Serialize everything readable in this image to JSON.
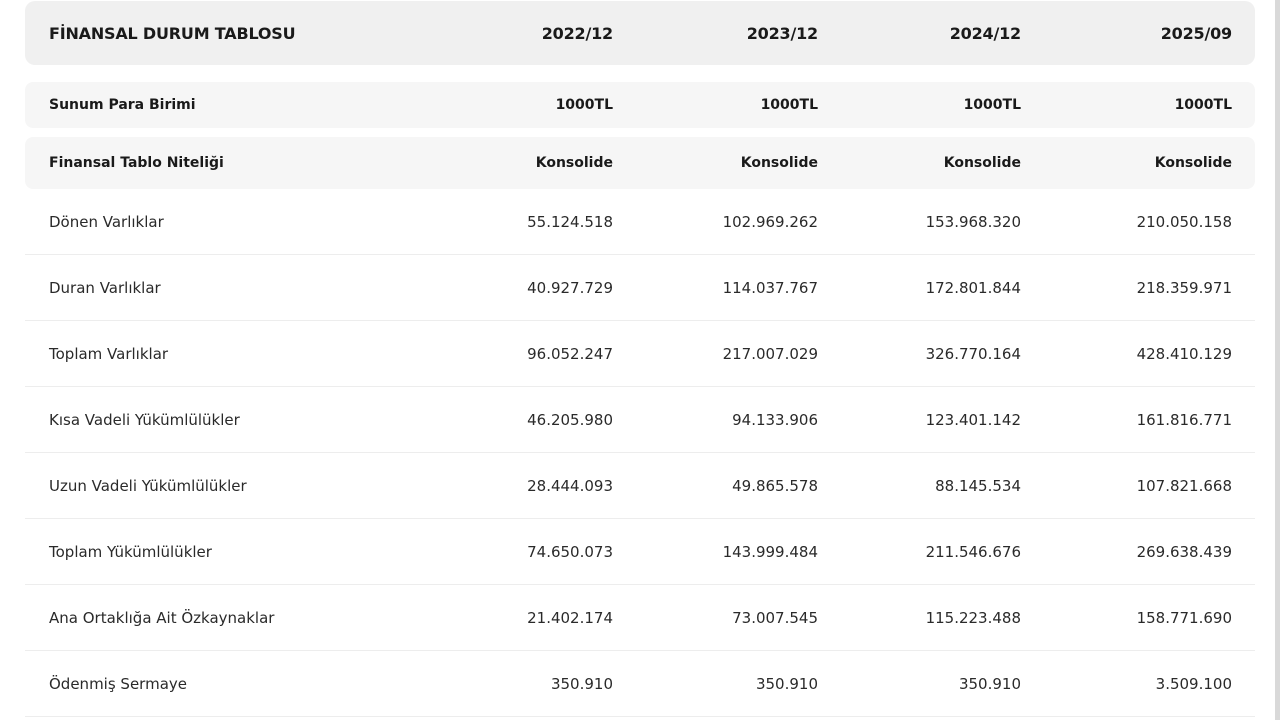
{
  "table": {
    "title": "FİNANSAL DURUM TABLOSU",
    "periods": [
      "2022/12",
      "2023/12",
      "2024/12",
      "2025/09"
    ],
    "meta_rows": [
      {
        "label": "Sunum Para Birimi",
        "values": [
          "1000TL",
          "1000TL",
          "1000TL",
          "1000TL"
        ]
      },
      {
        "label": "Finansal Tablo Niteliği",
        "values": [
          "Konsolide",
          "Konsolide",
          "Konsolide",
          "Konsolide"
        ]
      }
    ],
    "rows": [
      {
        "label": "Dönen Varlıklar",
        "values": [
          "55.124.518",
          "102.969.262",
          "153.968.320",
          "210.050.158"
        ]
      },
      {
        "label": "Duran Varlıklar",
        "values": [
          "40.927.729",
          "114.037.767",
          "172.801.844",
          "218.359.971"
        ]
      },
      {
        "label": "Toplam Varlıklar",
        "values": [
          "96.052.247",
          "217.007.029",
          "326.770.164",
          "428.410.129"
        ]
      },
      {
        "label": "Kısa Vadeli Yükümlülükler",
        "values": [
          "46.205.980",
          "94.133.906",
          "123.401.142",
          "161.816.771"
        ]
      },
      {
        "label": "Uzun Vadeli Yükümlülükler",
        "values": [
          "28.444.093",
          "49.865.578",
          "88.145.534",
          "107.821.668"
        ]
      },
      {
        "label": "Toplam Yükümlülükler",
        "values": [
          "74.650.073",
          "143.999.484",
          "211.546.676",
          "269.638.439"
        ]
      },
      {
        "label": "Ana Ortaklığa Ait Özkaynaklar",
        "values": [
          "21.402.174",
          "73.007.545",
          "115.223.488",
          "158.771.690"
        ]
      },
      {
        "label": "Ödenmiş Sermaye",
        "values": [
          "350.910",
          "350.910",
          "350.910",
          "3.509.100"
        ]
      }
    ]
  }
}
